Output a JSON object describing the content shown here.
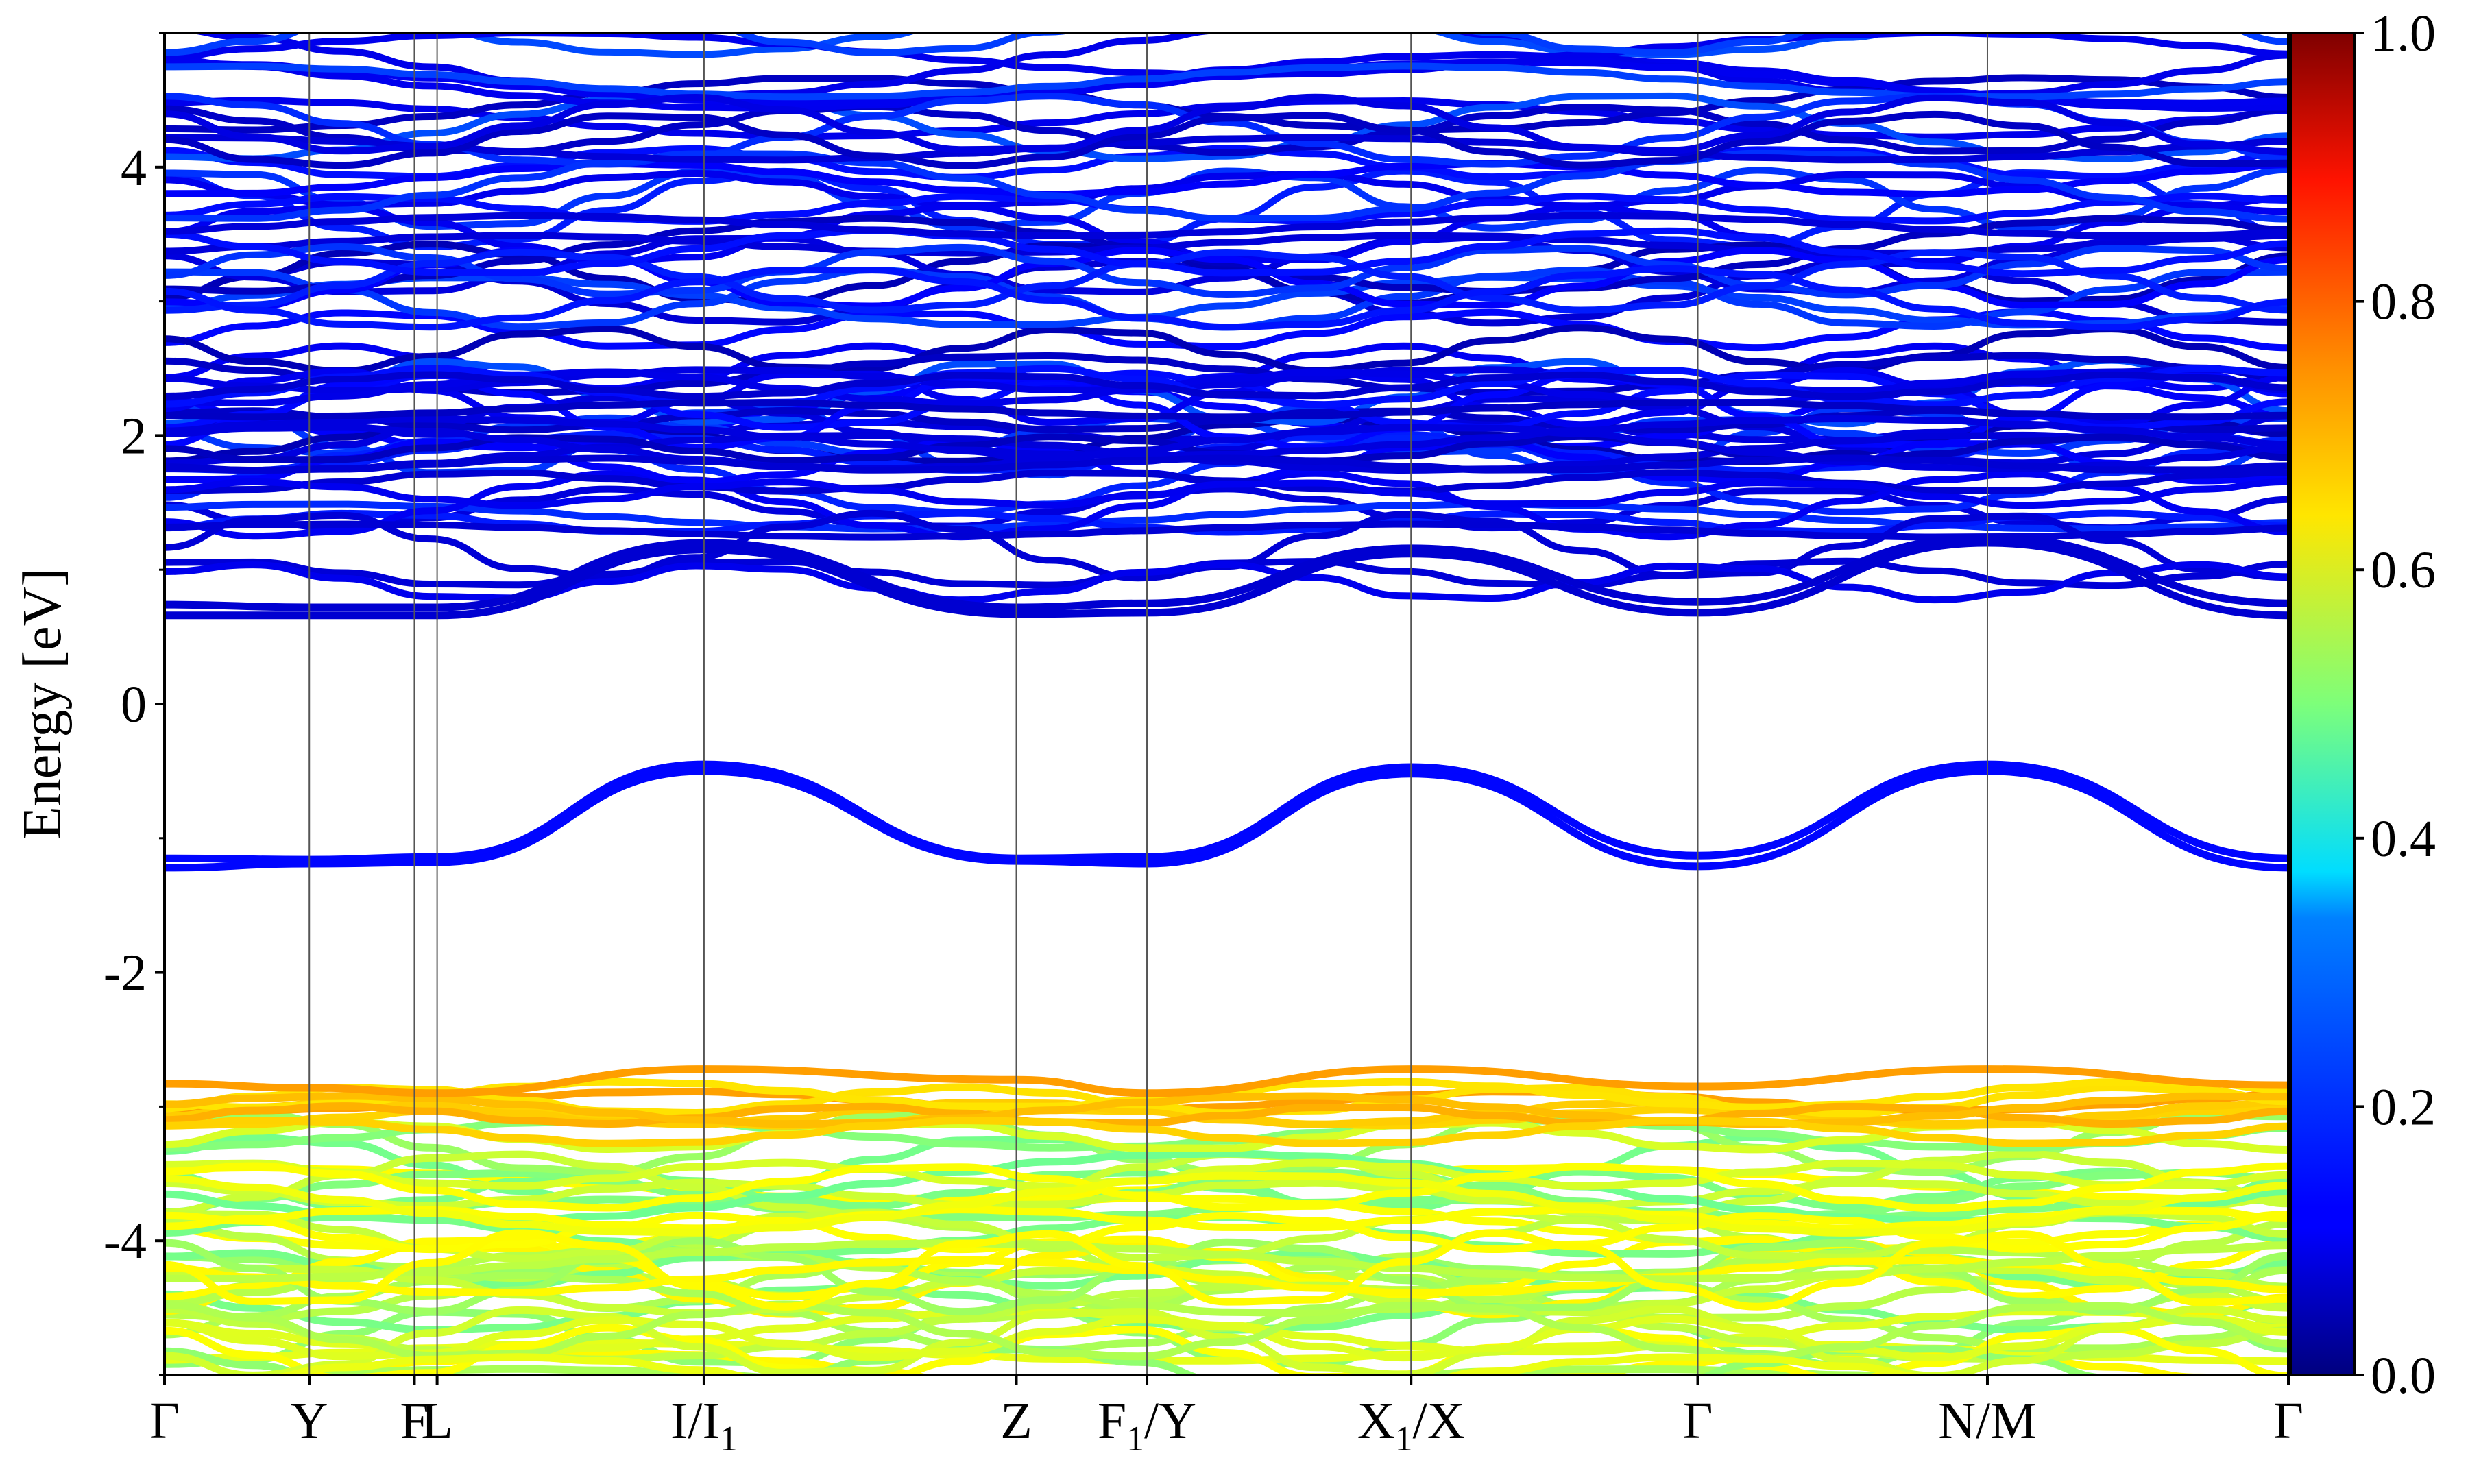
{
  "chart_data": {
    "type": "line",
    "title": "",
    "xlabel": "",
    "ylabel": "Energy [eV]",
    "ylim": [
      -5,
      5
    ],
    "grid": false,
    "x_ticks": [
      {
        "label": "Γ",
        "sub": "",
        "after": "",
        "pos": 0.0
      },
      {
        "label": "Y",
        "sub": "",
        "after": "",
        "pos": 0.51
      },
      {
        "label": "F",
        "sub": "",
        "after": "",
        "pos": 0.88
      },
      {
        "label": "L",
        "sub": "",
        "after": "",
        "pos": 0.96
      },
      {
        "label": "I/I",
        "sub": "1",
        "after": "",
        "pos": 1.9
      },
      {
        "label": "Z",
        "sub": "",
        "after": "",
        "pos": 3.0
      },
      {
        "label": "F",
        "sub": "1",
        "after": "/Y",
        "pos": 3.46
      },
      {
        "label": "X",
        "sub": "1",
        "after": "/X",
        "pos": 4.39
      },
      {
        "label": "Γ",
        "sub": "",
        "after": "",
        "pos": 5.4
      },
      {
        "label": "N/M",
        "sub": "",
        "after": "",
        "pos": 6.42
      },
      {
        "label": "Γ",
        "sub": "",
        "after": "",
        "pos": 7.48
      }
    ],
    "y_ticks": [
      4,
      2,
      0,
      -2,
      -4
    ],
    "colorbar": {
      "min": 0.0,
      "max": 1.0,
      "ticks": [
        "1.0",
        "0.8",
        "0.6",
        "0.4",
        "0.2",
        "0.0"
      ],
      "colormap": "jet"
    },
    "series": [
      {
        "role": "in-gap-band",
        "weight": 0.13,
        "x": [
          0,
          0.51,
          0.96,
          1.9,
          3.0,
          3.46,
          4.39,
          5.4,
          6.42,
          7.48
        ],
        "y": [
          -1.15,
          -1.16,
          -1.14,
          -0.45,
          -1.15,
          -1.14,
          -0.47,
          -1.13,
          -0.45,
          -1.15
        ]
      },
      {
        "role": "in-gap-band",
        "weight": 0.13,
        "x": [
          0,
          0.51,
          0.96,
          1.9,
          3.0,
          3.46,
          4.39,
          5.4,
          6.42,
          7.48
        ],
        "y": [
          -1.22,
          -1.19,
          -1.18,
          -0.5,
          -1.17,
          -1.19,
          -0.52,
          -1.21,
          -0.5,
          -1.22
        ]
      },
      {
        "role": "conduction-band-min",
        "weight": 0.08,
        "x": [
          0,
          0.51,
          0.96,
          1.9,
          3.0,
          3.46,
          4.39,
          5.4,
          6.42,
          7.48
        ],
        "y": [
          0.66,
          0.66,
          0.66,
          1.15,
          0.67,
          0.68,
          1.12,
          0.68,
          1.2,
          0.66
        ]
      },
      {
        "role": "conduction-band-min",
        "weight": 0.08,
        "x": [
          0,
          0.51,
          0.96,
          1.9,
          3.0,
          3.46,
          4.39,
          5.4,
          6.42,
          7.48
        ],
        "y": [
          0.74,
          0.72,
          0.72,
          1.2,
          0.72,
          0.75,
          1.16,
          0.76,
          1.24,
          0.75
        ]
      },
      {
        "role": "valence-band-max",
        "weight": 0.72,
        "x": [
          0,
          0.51,
          0.96,
          1.9,
          3.0,
          3.46,
          4.39,
          5.4,
          6.42,
          7.48
        ],
        "y": [
          -2.83,
          -2.86,
          -2.9,
          -2.72,
          -2.8,
          -2.9,
          -2.72,
          -2.85,
          -2.72,
          -2.84
        ]
      }
    ]
  }
}
